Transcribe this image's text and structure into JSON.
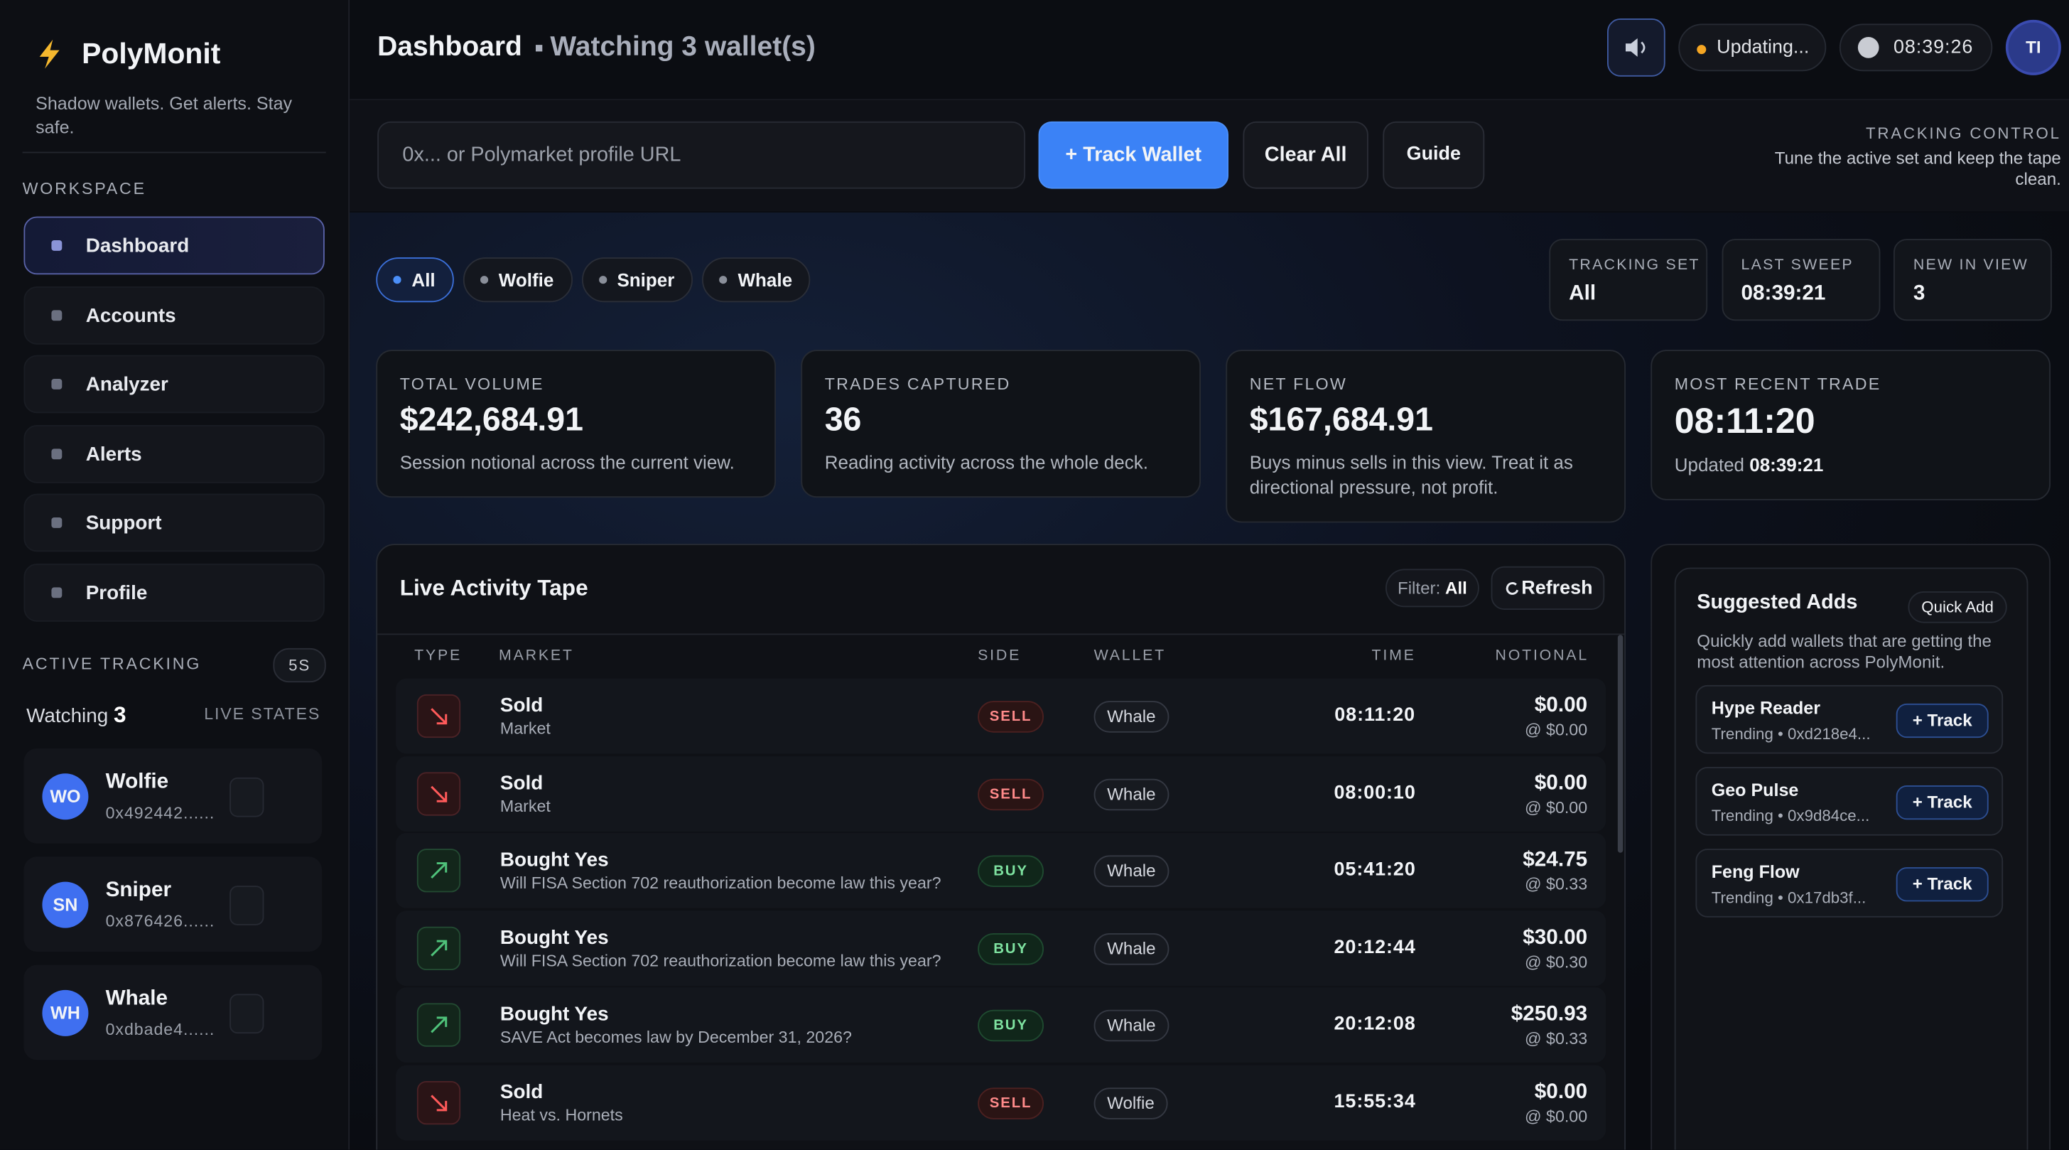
{
  "sidebar": {
    "brand": "PolyMonit",
    "tagline": "Shadow wallets. Get alerts. Stay safe.",
    "workspace_label": "WORKSPACE",
    "nav": [
      "Dashboard",
      "Accounts",
      "Analyzer",
      "Alerts",
      "Support",
      "Profile"
    ],
    "active_tracking_label": "ACTIVE TRACKING",
    "refresh_interval": "5S",
    "watching_label": "Watching",
    "watching_count": 3,
    "live_states_label": "LIVE STATES",
    "wallets": [
      {
        "initials": "WO",
        "name": "Wolfie",
        "address": "0x492442......"
      },
      {
        "initials": "SN",
        "name": "Sniper",
        "address": "0x876426......"
      },
      {
        "initials": "WH",
        "name": "Whale",
        "address": "0xdbade4......"
      }
    ]
  },
  "header": {
    "title": "Dashboard",
    "subtitle": "Watching 3 wallet(s)",
    "status": "Updating...",
    "clock": "08:39:26",
    "avatar": "TI"
  },
  "tracker": {
    "placeholder": "0x... or Polymarket profile URL",
    "track_button": "+ Track Wallet",
    "clear_button": "Clear All",
    "guide_button": "Guide",
    "control_label": "TRACKING CONTROL",
    "control_text": "Tune the active set and keep the tape clean."
  },
  "filters": [
    "All",
    "Wolfie",
    "Sniper",
    "Whale"
  ],
  "status_cards": [
    {
      "label": "TRACKING SET",
      "value": "All"
    },
    {
      "label": "LAST SWEEP",
      "value": "08:39:21"
    },
    {
      "label": "NEW IN VIEW",
      "value": "3"
    }
  ],
  "kpis": [
    {
      "label": "TOTAL VOLUME",
      "value": "$242,684.91",
      "note": "Session notional across the current view."
    },
    {
      "label": "TRADES CAPTURED",
      "value": "36",
      "note": "Reading activity across the whole deck."
    },
    {
      "label": "NET FLOW",
      "value": "$167,684.91",
      "note": "Buys minus sells in this view. Treat it as directional pressure, not profit."
    },
    {
      "label": "MOST RECENT TRADE",
      "value": "08:11:20",
      "note": "Updated",
      "note_value": "08:39:21"
    }
  ],
  "tape": {
    "title": "Live Activity Tape",
    "filter_label": "Filter:",
    "filter_value": "All",
    "refresh": "Refresh",
    "columns": [
      "TYPE",
      "MARKET",
      "SIDE",
      "WALLET",
      "TIME",
      "NOTIONAL"
    ],
    "rows": [
      {
        "action": "Sold",
        "market": "Market",
        "side": "SELL",
        "wallet": "Whale",
        "time": "08:11:20",
        "notional": "$0.00",
        "price": "@ $0.00"
      },
      {
        "action": "Sold",
        "market": "Market",
        "side": "SELL",
        "wallet": "Whale",
        "time": "08:00:10",
        "notional": "$0.00",
        "price": "@ $0.00"
      },
      {
        "action": "Bought Yes",
        "market": "Will FISA Section 702 reauthorization become law this year?",
        "side": "BUY",
        "wallet": "Whale",
        "time": "05:41:20",
        "notional": "$24.75",
        "price": "@ $0.33"
      },
      {
        "action": "Bought Yes",
        "market": "Will FISA Section 702 reauthorization become law this year?",
        "side": "BUY",
        "wallet": "Whale",
        "time": "20:12:44",
        "notional": "$30.00",
        "price": "@ $0.30"
      },
      {
        "action": "Bought Yes",
        "market": "SAVE Act becomes law by December 31, 2026?",
        "side": "BUY",
        "wallet": "Whale",
        "time": "20:12:08",
        "notional": "$250.93",
        "price": "@ $0.33"
      },
      {
        "action": "Sold",
        "market": "Heat vs. Hornets",
        "side": "SELL",
        "wallet": "Wolfie",
        "time": "15:55:34",
        "notional": "$0.00",
        "price": "@ $0.00"
      }
    ]
  },
  "suggested": {
    "title": "Suggested Adds",
    "quick_add": "Quick Add",
    "description": "Quickly add wallets that are getting the most attention across PolyMonit.",
    "items": [
      {
        "name": "Hype Reader",
        "meta": "Trending • 0xd218e4...",
        "button": "+ Track"
      },
      {
        "name": "Geo Pulse",
        "meta": "Trending • 0x9d84ce...",
        "button": "+ Track"
      },
      {
        "name": "Feng Flow",
        "meta": "Trending • 0x17db3f...",
        "button": "+ Track"
      }
    ]
  }
}
